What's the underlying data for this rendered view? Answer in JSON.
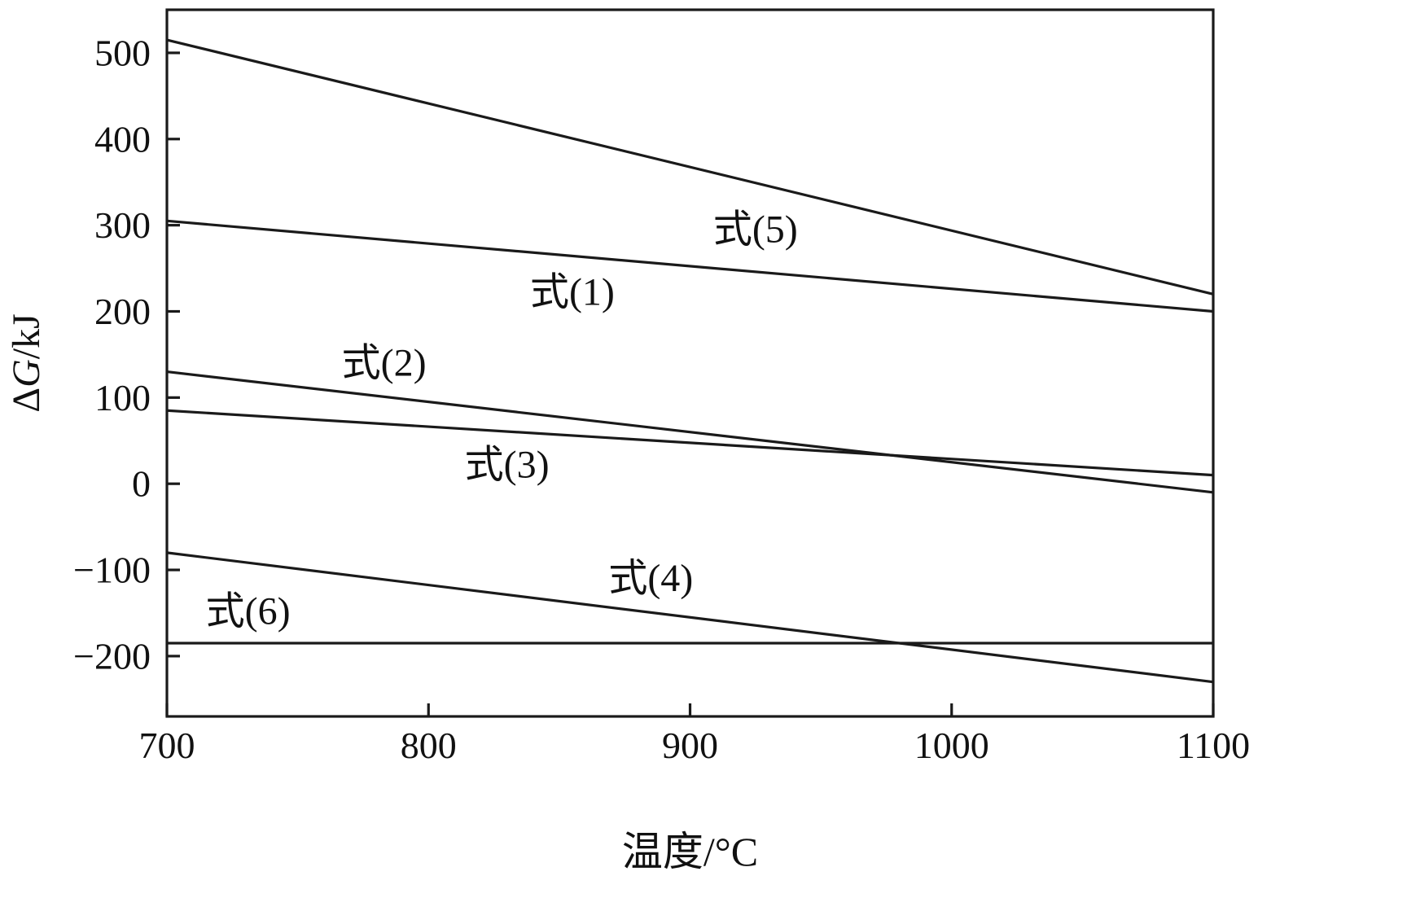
{
  "chart_data": {
    "type": "line",
    "title": "",
    "xlabel": "温度/°C",
    "ylabel": "ΔG/kJ",
    "ylabel_parts": [
      {
        "t": "Δ",
        "italic": false
      },
      {
        "t": "G",
        "italic": true
      },
      {
        "t": "/kJ",
        "italic": false
      }
    ],
    "xlim": [
      700,
      1100
    ],
    "ylim": [
      -270,
      550
    ],
    "x_ticks": [
      700,
      800,
      900,
      1000,
      1100
    ],
    "y_ticks": [
      -200,
      -100,
      0,
      100,
      200,
      300,
      400,
      500
    ],
    "grid": false,
    "legend": "inline-labels",
    "line_color": "#1a1a1a",
    "frame_color": "#1a1a1a",
    "series": [
      {
        "name": "式(5)",
        "x": [
          700,
          1100
        ],
        "y": [
          515,
          220
        ],
        "label_at": [
          925,
          295
        ]
      },
      {
        "name": "式(1)",
        "x": [
          700,
          1100
        ],
        "y": [
          305,
          200
        ],
        "label_at": [
          855,
          222
        ]
      },
      {
        "name": "式(2)",
        "x": [
          700,
          1100
        ],
        "y": [
          130,
          -10
        ],
        "label_at": [
          783,
          140
        ]
      },
      {
        "name": "式(3)",
        "x": [
          700,
          1100
        ],
        "y": [
          85,
          10
        ],
        "label_at": [
          830,
          22
        ]
      },
      {
        "name": "式(4)",
        "x": [
          700,
          1100
        ],
        "y": [
          -80,
          -230
        ],
        "label_at": [
          885,
          -110
        ]
      },
      {
        "name": "式(6)",
        "x": [
          700,
          1100
        ],
        "y": [
          -185,
          -185
        ],
        "label_at": [
          731,
          -148
        ]
      }
    ]
  }
}
